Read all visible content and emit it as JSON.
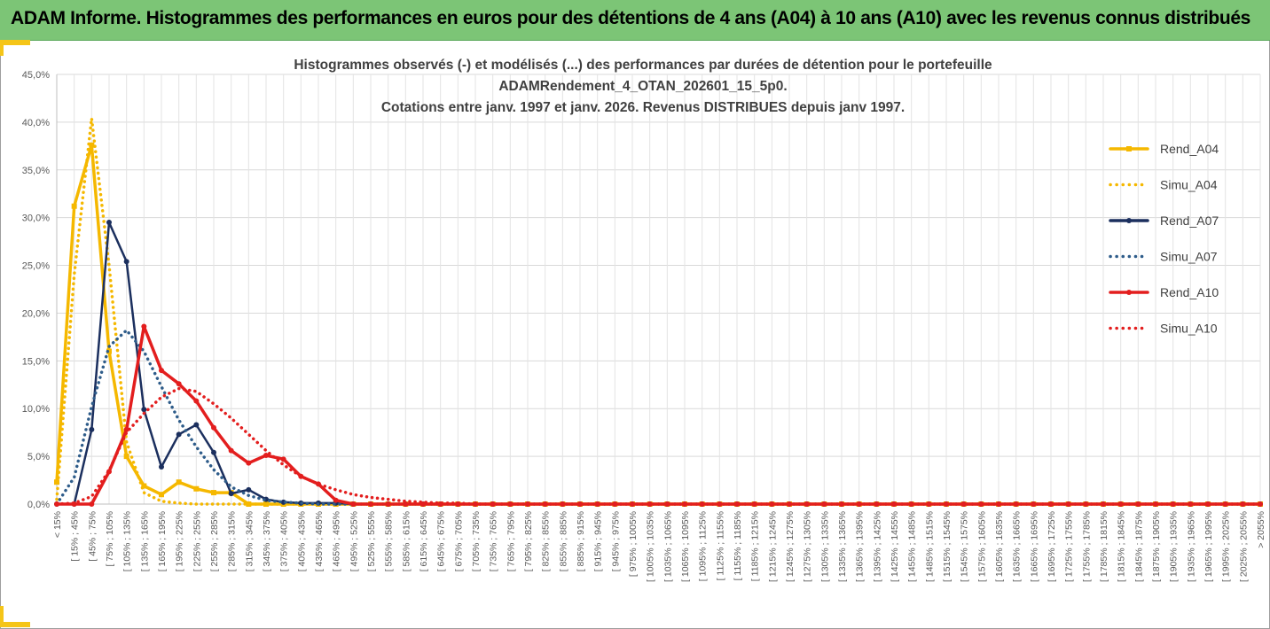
{
  "banner": {
    "title": "ADAM Informe. Histogrammes des performances en euros pour des détentions de 4 ans (A04) à 10 ans (A10) avec les revenus connus distribués"
  },
  "colors": {
    "banner": "#7cc576",
    "accent": "#f5c518",
    "A04": "#f5b800",
    "A07": "#1b2f5e",
    "A07_simu": "#2e5c8a",
    "A10": "#e31e1e"
  },
  "chart_data": {
    "type": "line",
    "title_lines": [
      "Histogrammes observés (-) et modélisés (...) des performances par durées de détention pour le portefeuille",
      "ADAMRendement_4_OTAN_202601_15_5p0.",
      "Cotations entre janv. 1997 et janv. 2026. Revenus DISTRIBUES depuis janv 1997."
    ],
    "ylim": [
      0,
      45
    ],
    "y_ticks": [
      "0,0%",
      "5,0%",
      "10,0%",
      "15,0%",
      "20,0%",
      "25,0%",
      "30,0%",
      "35,0%",
      "40,0%",
      "45,0%"
    ],
    "y_tick_values": [
      0,
      5,
      10,
      15,
      20,
      25,
      30,
      35,
      40,
      45
    ],
    "grid": true,
    "legend_position": "right",
    "categories": [
      "< 15%",
      "[ 15% ; 45%",
      "[ 45% ; 75%",
      "[ 75% ; 105%",
      "[ 105% ; 135%",
      "[ 135% ; 165%",
      "[ 165% ; 195%",
      "[ 195% ; 225%",
      "[ 225% ; 255%",
      "[ 255% ; 285%",
      "[ 285% ; 315%",
      "[ 315% ; 345%",
      "[ 345% ; 375%",
      "[ 375% ; 405%",
      "[ 405% ; 435%",
      "[ 435% ; 465%",
      "[ 465% ; 495%",
      "[ 495% ; 525%",
      "[ 525% ; 555%",
      "[ 555% ; 585%",
      "[ 585% ; 615%",
      "[ 615% ; 645%",
      "[ 645% ; 675%",
      "[ 675% ; 705%",
      "[ 705% ; 735%",
      "[ 735% ; 765%",
      "[ 765% ; 795%",
      "[ 795% ; 825%",
      "[ 825% ; 855%",
      "[ 855% ; 885%",
      "[ 885% ; 915%",
      "[ 915% ; 945%",
      "[ 945% ; 975%",
      "[ 975% ; 1005%",
      "[ 1005% ; 1035%",
      "[ 1035% ; 1065%",
      "[ 1065% ; 1095%",
      "[ 1095% ; 1125%",
      "[ 1125% ; 1155%",
      "[ 1155% ; 1185%",
      "[ 1185% ; 1215%",
      "[ 1215% ; 1245%",
      "[ 1245% ; 1275%",
      "[ 1275% ; 1305%",
      "[ 1305% ; 1335%",
      "[ 1335% ; 1365%",
      "[ 1365% ; 1395%",
      "[ 1395% ; 1425%",
      "[ 1425% ; 1455%",
      "[ 1455% ; 1485%",
      "[ 1485% ; 1515%",
      "[ 1515% ; 1545%",
      "[ 1545% ; 1575%",
      "[ 1575% ; 1605%",
      "[ 1605% ; 1635%",
      "[ 1635% ; 1665%",
      "[ 1665% ; 1695%",
      "[ 1695% ; 1725%",
      "[ 1725% ; 1755%",
      "[ 1755% ; 1785%",
      "[ 1785% ; 1815%",
      "[ 1815% ; 1845%",
      "[ 1845% ; 1875%",
      "[ 1875% ; 1905%",
      "[ 1905% ; 1935%",
      "[ 1935% ; 1965%",
      "[ 1965% ; 1995%",
      "[ 1995% ; 2025%",
      "[ 2025% ; 2055%",
      "> 2055%"
    ],
    "series": [
      {
        "name": "Rend_A04",
        "style": "solid",
        "color": "#f5b800",
        "values": [
          2.3,
          31.2,
          37.6,
          16.0,
          5.0,
          1.9,
          1.0,
          2.3,
          1.6,
          1.2,
          1.2,
          0.0,
          0.0,
          0.0,
          0.0,
          0.0,
          0.0,
          0.0,
          0.0,
          0.0,
          0.0,
          0.0,
          0.0,
          0.0,
          0.0,
          0.0,
          0.0,
          0.0,
          0.0,
          0.0,
          0.0,
          0.0,
          0.0,
          0.0,
          0.0,
          0.0,
          0.0,
          0.0,
          0.0,
          0.0,
          0.0,
          0.0,
          0.0,
          0.0,
          0.0,
          0.0,
          0.0,
          0.0,
          0.0,
          0.0,
          0.0,
          0.0,
          0.0,
          0.0,
          0.0,
          0.0,
          0.0,
          0.0,
          0.0,
          0.0,
          0.0,
          0.0,
          0.0,
          0.0,
          0.0,
          0.0,
          0.0,
          0.0,
          0.0,
          0.0
        ]
      },
      {
        "name": "Simu_A04",
        "style": "dotted",
        "color": "#f5b800",
        "values": [
          0.5,
          24.0,
          40.4,
          25.0,
          6.5,
          1.2,
          0.3,
          0.1,
          0.0,
          0.0,
          0.0,
          0.0,
          0.0,
          0.0,
          0.0,
          0.0,
          0.0,
          0.0,
          0.0,
          0.0,
          0.0,
          0.0,
          0.0,
          0.0,
          0.0,
          0.0,
          0.0,
          0.0,
          0.0,
          0.0,
          0.0,
          0.0,
          0.0,
          0.0,
          0.0,
          0.0,
          0.0,
          0.0,
          0.0,
          0.0,
          0.0,
          0.0,
          0.0,
          0.0,
          0.0,
          0.0,
          0.0,
          0.0,
          0.0,
          0.0,
          0.0,
          0.0,
          0.0,
          0.0,
          0.0,
          0.0,
          0.0,
          0.0,
          0.0,
          0.0,
          0.0,
          0.0,
          0.0,
          0.0,
          0.0,
          0.0,
          0.0,
          0.0,
          0.0,
          0.0
        ]
      },
      {
        "name": "Rend_A07",
        "style": "solid",
        "color": "#1b2f5e",
        "values": [
          0.0,
          0.0,
          7.8,
          29.5,
          25.4,
          9.9,
          3.9,
          7.3,
          8.3,
          5.4,
          1.1,
          1.5,
          0.5,
          0.2,
          0.1,
          0.1,
          0.1,
          0.0,
          0.0,
          0.0,
          0.0,
          0.0,
          0.0,
          0.0,
          0.0,
          0.0,
          0.0,
          0.0,
          0.0,
          0.0,
          0.0,
          0.0,
          0.0,
          0.0,
          0.0,
          0.0,
          0.0,
          0.0,
          0.0,
          0.0,
          0.0,
          0.0,
          0.0,
          0.0,
          0.0,
          0.0,
          0.0,
          0.0,
          0.0,
          0.0,
          0.0,
          0.0,
          0.0,
          0.0,
          0.0,
          0.0,
          0.0,
          0.0,
          0.0,
          0.0,
          0.0,
          0.0,
          0.0,
          0.0,
          0.0,
          0.0,
          0.0,
          0.0,
          0.0,
          0.0
        ]
      },
      {
        "name": "Simu_A07",
        "style": "dotted",
        "color": "#2e5c8a",
        "values": [
          0.0,
          2.8,
          10.2,
          16.5,
          18.2,
          16.0,
          12.3,
          8.8,
          6.0,
          3.6,
          1.8,
          0.9,
          0.4,
          0.2,
          0.1,
          0.0,
          0.0,
          0.0,
          0.0,
          0.0,
          0.0,
          0.0,
          0.0,
          0.0,
          0.0,
          0.0,
          0.0,
          0.0,
          0.0,
          0.0,
          0.0,
          0.0,
          0.0,
          0.0,
          0.0,
          0.0,
          0.0,
          0.0,
          0.0,
          0.0,
          0.0,
          0.0,
          0.0,
          0.0,
          0.0,
          0.0,
          0.0,
          0.0,
          0.0,
          0.0,
          0.0,
          0.0,
          0.0,
          0.0,
          0.0,
          0.0,
          0.0,
          0.0,
          0.0,
          0.0,
          0.0,
          0.0,
          0.0,
          0.0,
          0.0,
          0.0,
          0.0,
          0.0,
          0.0,
          0.0
        ]
      },
      {
        "name": "Rend_A10",
        "style": "solid",
        "color": "#e31e1e",
        "values": [
          0.0,
          0.0,
          0.0,
          3.4,
          7.8,
          18.6,
          14.0,
          12.6,
          10.8,
          8.0,
          5.6,
          4.3,
          5.1,
          4.7,
          2.9,
          2.1,
          0.4,
          0.0,
          0.0,
          0.0,
          0.0,
          0.0,
          0.0,
          0.0,
          0.0,
          0.0,
          0.0,
          0.0,
          0.0,
          0.0,
          0.0,
          0.0,
          0.0,
          0.0,
          0.0,
          0.0,
          0.0,
          0.0,
          0.0,
          0.0,
          0.0,
          0.0,
          0.0,
          0.0,
          0.0,
          0.0,
          0.0,
          0.0,
          0.0,
          0.0,
          0.0,
          0.0,
          0.0,
          0.0,
          0.0,
          0.0,
          0.0,
          0.0,
          0.0,
          0.0,
          0.0,
          0.0,
          0.0,
          0.0,
          0.0,
          0.0,
          0.0,
          0.0,
          0.0,
          0.0
        ]
      },
      {
        "name": "Simu_A10",
        "style": "dotted",
        "color": "#e31e1e",
        "values": [
          0.0,
          0.1,
          0.8,
          3.5,
          7.5,
          9.5,
          11.2,
          12.1,
          11.8,
          10.5,
          9.0,
          7.3,
          5.6,
          4.1,
          2.9,
          2.1,
          1.5,
          1.0,
          0.7,
          0.5,
          0.3,
          0.2,
          0.1,
          0.1,
          0.0,
          0.0,
          0.0,
          0.0,
          0.0,
          0.0,
          0.0,
          0.0,
          0.0,
          0.0,
          0.0,
          0.0,
          0.0,
          0.0,
          0.0,
          0.0,
          0.0,
          0.0,
          0.0,
          0.0,
          0.0,
          0.0,
          0.0,
          0.0,
          0.0,
          0.0,
          0.0,
          0.0,
          0.0,
          0.0,
          0.0,
          0.0,
          0.0,
          0.0,
          0.0,
          0.0,
          0.0,
          0.0,
          0.0,
          0.0,
          0.0,
          0.0,
          0.0,
          0.0,
          0.0,
          0.0
        ]
      }
    ]
  }
}
